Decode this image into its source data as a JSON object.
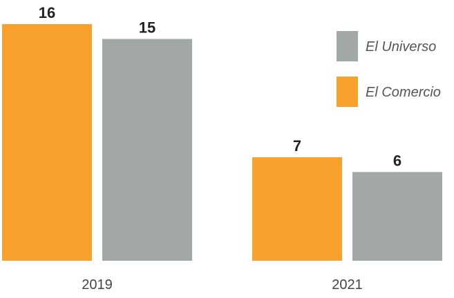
{
  "chart_data": {
    "type": "bar",
    "categories": [
      "2019",
      "2021"
    ],
    "series": [
      {
        "name": "El Comercio",
        "values": [
          16,
          7
        ],
        "color": "#F9A12D"
      },
      {
        "name": "El Universo",
        "values": [
          15,
          6
        ],
        "color": "#A2A8A5"
      }
    ],
    "ylim": [
      0,
      17
    ],
    "grid": false,
    "legend_position": "top-right",
    "legend_order": [
      "El Universo",
      "El Comercio"
    ],
    "title": "",
    "xlabel": "",
    "ylabel": ""
  }
}
